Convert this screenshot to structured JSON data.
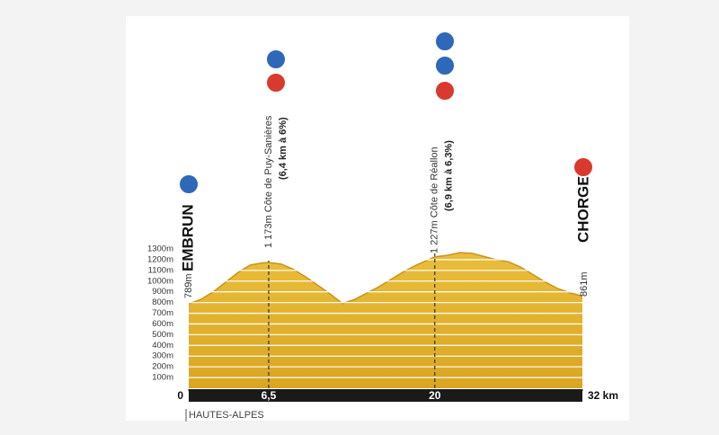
{
  "chart_data": {
    "type": "area",
    "color": "#e4b22c",
    "x": [
      0,
      1,
      2,
      3,
      4,
      5,
      6,
      6.5,
      7.5,
      8.5,
      9.5,
      10.5,
      11.5,
      12.5,
      13.5,
      14.5,
      15.5,
      16.5,
      17.5,
      18.5,
      19.5,
      20,
      21,
      22,
      23,
      24,
      25,
      26,
      27,
      28,
      29,
      30,
      31,
      32
    ],
    "values": [
      789,
      830,
      900,
      990,
      1080,
      1150,
      1170,
      1173,
      1160,
      1110,
      1040,
      960,
      880,
      790,
      830,
      890,
      950,
      1020,
      1090,
      1150,
      1200,
      1227,
      1240,
      1265,
      1260,
      1230,
      1200,
      1180,
      1130,
      1060,
      990,
      930,
      890,
      861
    ],
    "xlim": [
      0,
      32
    ],
    "ylim": [
      0,
      1300
    ],
    "xticks": [
      0,
      {
        "value": 6.5,
        "label": "6,5"
      },
      20,
      {
        "value": 32,
        "label": "32 km"
      }
    ],
    "yticks": [
      {
        "value": 100,
        "label": "100m"
      },
      {
        "value": 200,
        "label": "200m"
      },
      {
        "value": 300,
        "label": "300m"
      },
      {
        "value": 400,
        "label": "400m"
      },
      {
        "value": 500,
        "label": "500m"
      },
      {
        "value": 600,
        "label": "600m"
      },
      {
        "value": 700,
        "label": "700m"
      },
      {
        "value": 800,
        "label": "800m"
      },
      {
        "value": 900,
        "label": "900m"
      },
      {
        "value": 1000,
        "label": "1000m"
      },
      {
        "value": 1100,
        "label": "1100m"
      },
      {
        "value": 1200,
        "label": "1200m"
      },
      {
        "value": 1300,
        "label": "1300m"
      }
    ],
    "grid": true,
    "start": {
      "name": "EMBRUN",
      "elevation": "789m"
    },
    "finish": {
      "name": "CHORGES",
      "elevation": "861m"
    },
    "climbs": [
      {
        "x": 6.5,
        "label": "1 173m  Côte de Puy-Sanières",
        "detail": "(6,4 km à 6%)"
      },
      {
        "x": 20,
        "label": "1 227m  Côte de Réallon",
        "detail": "(6,9 km à 6,3%)"
      }
    ],
    "region": "HAUTES-ALPES"
  }
}
